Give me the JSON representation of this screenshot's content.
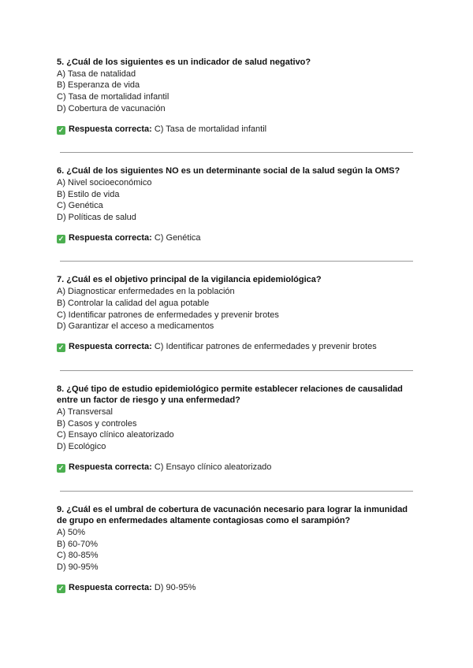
{
  "answer_label": "Respuesta correcta:",
  "check_icon_color": "#4caf50",
  "questions": [
    {
      "text": "5. ¿Cuál de los siguientes es un indicador de salud negativo?",
      "options": [
        "A) Tasa de natalidad",
        "B) Esperanza de vida",
        "C) Tasa de mortalidad infantil",
        "D) Cobertura de vacunación"
      ],
      "answer": "C) Tasa de mortalidad infantil"
    },
    {
      "text": "6. ¿Cuál de los siguientes NO es un determinante social de la salud según la OMS?",
      "options": [
        "A) Nivel socioeconómico",
        "B) Estilo de vida",
        "C) Genética",
        "D) Políticas de salud"
      ],
      "answer": "C) Genética"
    },
    {
      "text": "7. ¿Cuál es el objetivo principal de la vigilancia epidemiológica?",
      "options": [
        "A) Diagnosticar enfermedades en la población",
        "B) Controlar la calidad del agua potable",
        "C) Identificar patrones de enfermedades y prevenir brotes",
        "D) Garantizar el acceso a medicamentos"
      ],
      "answer": "C) Identificar patrones de enfermedades y prevenir brotes"
    },
    {
      "text": "8. ¿Qué tipo de estudio epidemiológico permite establecer relaciones de causalidad entre un factor de riesgo y una enfermedad?",
      "options": [
        "A) Transversal",
        "B) Casos y controles",
        "C) Ensayo clínico aleatorizado",
        "D) Ecológico"
      ],
      "answer": "C) Ensayo clínico aleatorizado"
    },
    {
      "text": "9. ¿Cuál es el umbral de cobertura de vacunación necesario para lograr la inmunidad de grupo en enfermedades altamente contagiosas como el sarampión?",
      "options": [
        "A) 50%",
        "B) 60-70%",
        "C) 80-85%",
        "D) 90-95%"
      ],
      "answer": "D) 90-95%"
    }
  ]
}
